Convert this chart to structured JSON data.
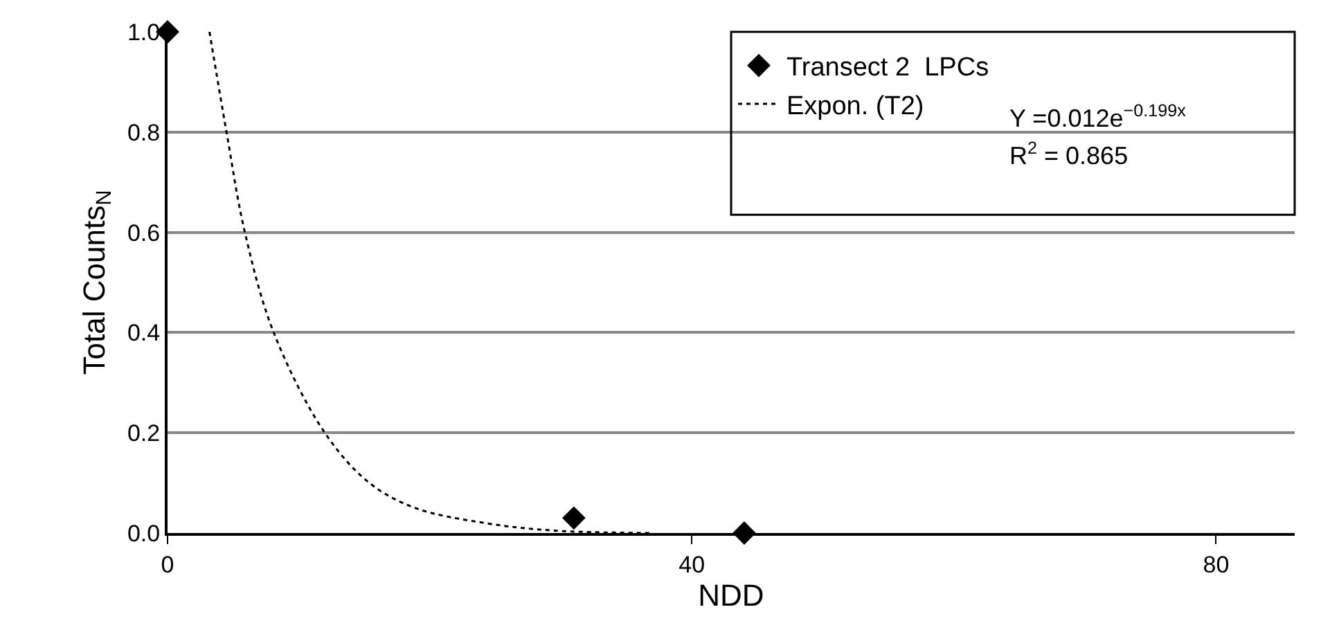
{
  "chart_data": {
    "type": "scatter",
    "xlabel": "NDD",
    "ylabel": "Total Counts$_{N}$",
    "xlim": [
      0,
      86
    ],
    "xticks": [
      0,
      40,
      80
    ],
    "ylim": [
      0,
      1.0
    ],
    "yticks": [
      {
        "value": 0,
        "label": "0.0"
      },
      {
        "value": 0.2,
        "label": "0.2"
      },
      {
        "value": 0.4,
        "label": "0.4"
      },
      {
        "value": 0.6,
        "label": "0.6"
      },
      {
        "value": 0.8,
        "label": "0.8"
      },
      {
        "value": 1.0,
        "label": "1.0"
      }
    ],
    "grid": "y",
    "legend": "top right",
    "series": [
      {
        "name": "Transect 2  LPCs",
        "marker": "diamond",
        "color": "#000000",
        "x": [
          0,
          31,
          44
        ],
        "values": [
          1.0,
          0.03,
          0.0
        ]
      },
      {
        "name": "Expon. (T2)",
        "type": "line",
        "marker": "none",
        "line_style": "dotted",
        "color": "#000000",
        "x": [
          3.2,
          4.5,
          5.9,
          8.1,
          12.0,
          15.4,
          18.9,
          24.2,
          29.4,
          36.8
        ],
        "values": [
          1.0,
          0.8,
          0.6,
          0.4,
          0.2,
          0.1,
          0.05,
          0.02,
          0.005,
          0.0
        ]
      }
    ],
    "annotations": [
      "Y =0.012e$^{−0.199x}$",
      "R$^{2}$ = 0.865"
    ]
  }
}
